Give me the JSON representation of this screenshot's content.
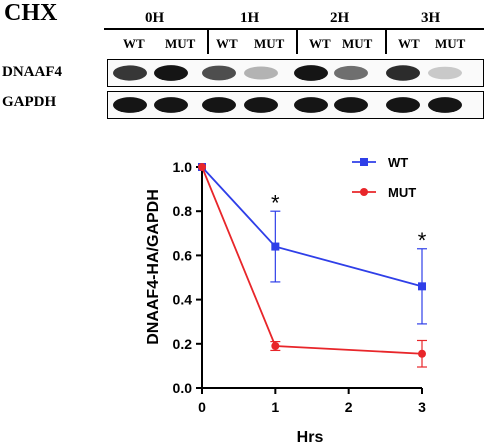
{
  "blot": {
    "treatment_label": "CHX",
    "timepoints": [
      "0H",
      "1H",
      "2H",
      "3H"
    ],
    "genotypes": [
      "WT",
      "MUT"
    ],
    "rows": [
      {
        "label": "DNAAF4",
        "intensities": [
          0.8,
          0.95,
          0.7,
          0.25,
          0.95,
          0.55,
          0.85,
          0.15
        ]
      },
      {
        "label": "GAPDH",
        "intensities": [
          0.95,
          0.95,
          0.95,
          0.95,
          0.95,
          0.95,
          0.95,
          0.95
        ]
      }
    ]
  },
  "chart_data": {
    "type": "line",
    "xlabel": "Hrs",
    "ylabel": "DNAAF4-HA/GAPDH",
    "x_ticks": [
      "0",
      "1",
      "2",
      "3"
    ],
    "y_ticks": [
      "0.0",
      "0.2",
      "0.4",
      "0.6",
      "0.8",
      "1.0"
    ],
    "xlim": [
      0,
      3
    ],
    "ylim": [
      0,
      1.0
    ],
    "legend_position": "top-right",
    "series": [
      {
        "name": "WT",
        "color": "#2f3fe8",
        "marker": "square",
        "x": [
          0,
          1,
          3
        ],
        "y": [
          1.0,
          0.64,
          0.46
        ],
        "err": [
          0,
          0.16,
          0.17
        ]
      },
      {
        "name": "MUT",
        "color": "#e8262a",
        "marker": "circle",
        "x": [
          0,
          1,
          3
        ],
        "y": [
          1.0,
          0.19,
          0.155
        ],
        "err": [
          0,
          0.02,
          0.06
        ]
      }
    ],
    "annotations": [
      {
        "text": "*",
        "x": 1,
        "y": 0.84
      },
      {
        "text": "*",
        "x": 3,
        "y": 0.67
      }
    ]
  }
}
